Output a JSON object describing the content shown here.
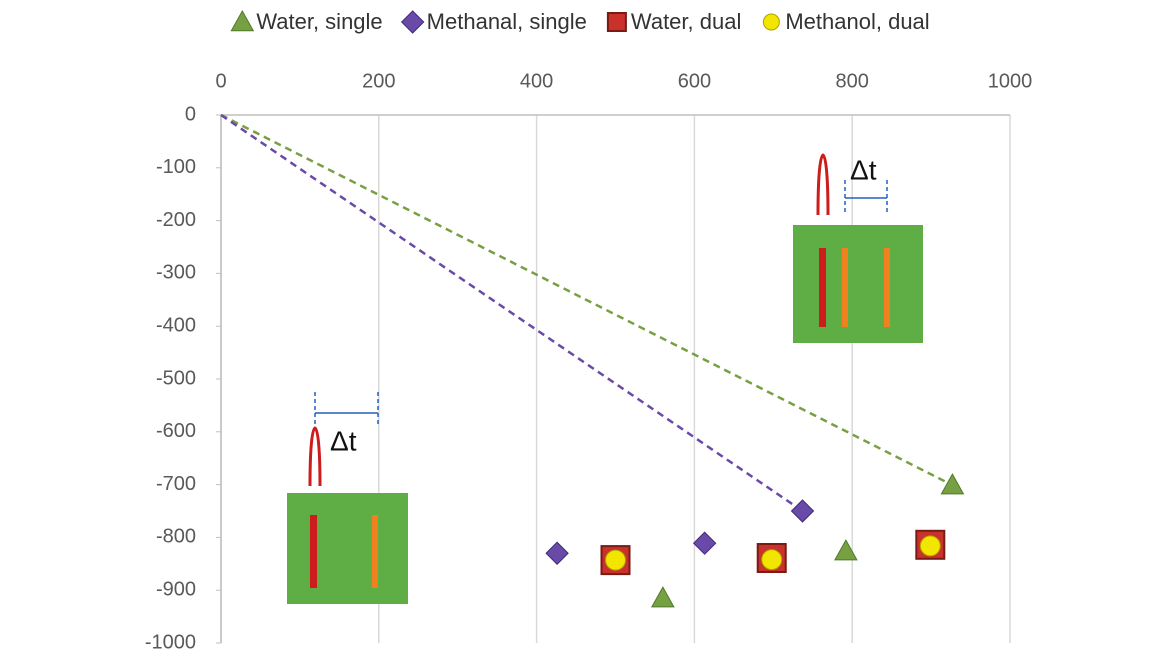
{
  "chart_data": {
    "type": "scatter",
    "series": [
      {
        "name": "Water, single",
        "color": "#77a043",
        "marker": "triangle",
        "trendline": true,
        "x": [
          560,
          792,
          927
        ],
        "values": [
          -915,
          -826,
          -701
        ]
      },
      {
        "name": "Methanal, single",
        "color": "#6a4aa8",
        "marker": "diamond",
        "trendline": true,
        "x": [
          426,
          613,
          737
        ],
        "values": [
          -830,
          -811,
          -750
        ]
      },
      {
        "name": "Water, dual",
        "color": "#c8322a",
        "marker": "square",
        "x": [
          500,
          698,
          899
        ],
        "values": [
          -843,
          -839,
          -814
        ]
      },
      {
        "name": "Methanol, dual",
        "color": "#f2e600",
        "marker": "circle",
        "x": [
          500,
          698,
          899
        ],
        "values": [
          -843,
          -842,
          -816
        ]
      }
    ],
    "xlim": [
      0,
      1000
    ],
    "xticks": [
      0,
      200,
      400,
      600,
      800,
      1000
    ],
    "ylim": [
      -1000,
      0
    ],
    "yticks": [
      0,
      -100,
      -200,
      -300,
      -400,
      -500,
      -600,
      -700,
      -800,
      -900,
      -1000
    ],
    "grid": true,
    "legend": "top",
    "annotations": [
      "Δt",
      "Δt"
    ]
  }
}
